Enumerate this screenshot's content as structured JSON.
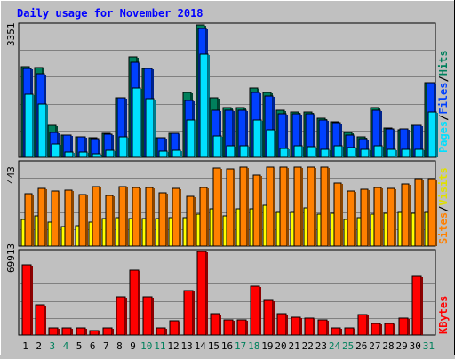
{
  "chart_data": [
    {
      "type": "bar",
      "title": "Daily usage for November 2018",
      "categories": [
        "1",
        "2",
        "3",
        "4",
        "5",
        "6",
        "7",
        "8",
        "9",
        "10",
        "11",
        "12",
        "13",
        "14",
        "15",
        "16",
        "17",
        "18",
        "19",
        "20",
        "21",
        "22",
        "23",
        "24",
        "25",
        "26",
        "27",
        "28",
        "29",
        "30",
        "31"
      ],
      "weekend_days": [
        "3",
        "4",
        "10",
        "11",
        "17",
        "18",
        "24",
        "25",
        "31"
      ],
      "y_max_label": "3351",
      "ylim": [
        0,
        3351
      ],
      "series": [
        {
          "name": "Hits",
          "color": "#00805c",
          "values": [
            2300,
            2280,
            800,
            560,
            520,
            500,
            600,
            1500,
            2550,
            2250,
            500,
            600,
            1650,
            3351,
            1500,
            1250,
            1250,
            1750,
            1650,
            1200,
            1150,
            1150,
            1000,
            900,
            630,
            520,
            1250,
            750,
            700,
            800,
            1900
          ]
        },
        {
          "name": "Files",
          "color": "#0040ff",
          "values": [
            2250,
            2120,
            620,
            560,
            520,
            480,
            580,
            1500,
            2400,
            2250,
            500,
            600,
            1450,
            3250,
            1200,
            1200,
            1200,
            1650,
            1550,
            1100,
            1100,
            1100,
            950,
            880,
            560,
            480,
            1200,
            720,
            720,
            800,
            1900
          ]
        },
        {
          "name": "Pages",
          "color": "#00e0ff",
          "values": [
            1600,
            1350,
            340,
            140,
            130,
            100,
            170,
            520,
            1750,
            1480,
            160,
            180,
            940,
            2600,
            550,
            300,
            300,
            950,
            700,
            230,
            300,
            280,
            200,
            300,
            250,
            200,
            300,
            200,
            200,
            200,
            1150
          ]
        }
      ]
    },
    {
      "type": "bar",
      "categories": [
        "1",
        "2",
        "3",
        "4",
        "5",
        "6",
        "7",
        "8",
        "9",
        "10",
        "11",
        "12",
        "13",
        "14",
        "15",
        "16",
        "17",
        "18",
        "19",
        "20",
        "21",
        "22",
        "23",
        "24",
        "25",
        "26",
        "27",
        "28",
        "29",
        "30",
        "31"
      ],
      "y_max_label": "443",
      "ylim": [
        0,
        443
      ],
      "series": [
        {
          "name": "Sites",
          "color": "#ff8000",
          "values": [
            278,
            305,
            290,
            295,
            272,
            315,
            270,
            315,
            310,
            312,
            282,
            305,
            265,
            310,
            413,
            410,
            420,
            375,
            420,
            420,
            420,
            420,
            420,
            335,
            290,
            300,
            310,
            305,
            332,
            358,
            358
          ]
        },
        {
          "name": "Visits",
          "color": "#ffff00",
          "values": [
            140,
            160,
            125,
            105,
            110,
            128,
            148,
            150,
            145,
            148,
            148,
            150,
            150,
            170,
            200,
            160,
            200,
            198,
            215,
            180,
            180,
            205,
            170,
            175,
            140,
            150,
            170,
            175,
            180,
            175,
            180
          ]
        }
      ]
    },
    {
      "type": "bar",
      "categories": [
        "1",
        "2",
        "3",
        "4",
        "5",
        "6",
        "7",
        "8",
        "9",
        "10",
        "11",
        "12",
        "13",
        "14",
        "15",
        "16",
        "17",
        "18",
        "19",
        "20",
        "21",
        "22",
        "23",
        "24",
        "25",
        "26",
        "27",
        "28",
        "29",
        "30",
        "31"
      ],
      "y_max_label": "69913",
      "ylim": [
        0,
        69913
      ],
      "series": [
        {
          "name": "KBytes",
          "color": "#ff0000",
          "values": [
            59000,
            25000,
            6000,
            6000,
            6000,
            4000,
            6000,
            32000,
            54000,
            32000,
            6000,
            12000,
            37000,
            69913,
            18000,
            13000,
            13000,
            41000,
            29000,
            18000,
            15000,
            14000,
            13000,
            6000,
            6000,
            17000,
            10000,
            10000,
            14000,
            49000,
            0
          ]
        }
      ]
    }
  ],
  "legend": {
    "top_sep": "/",
    "mid_sep": "/"
  }
}
